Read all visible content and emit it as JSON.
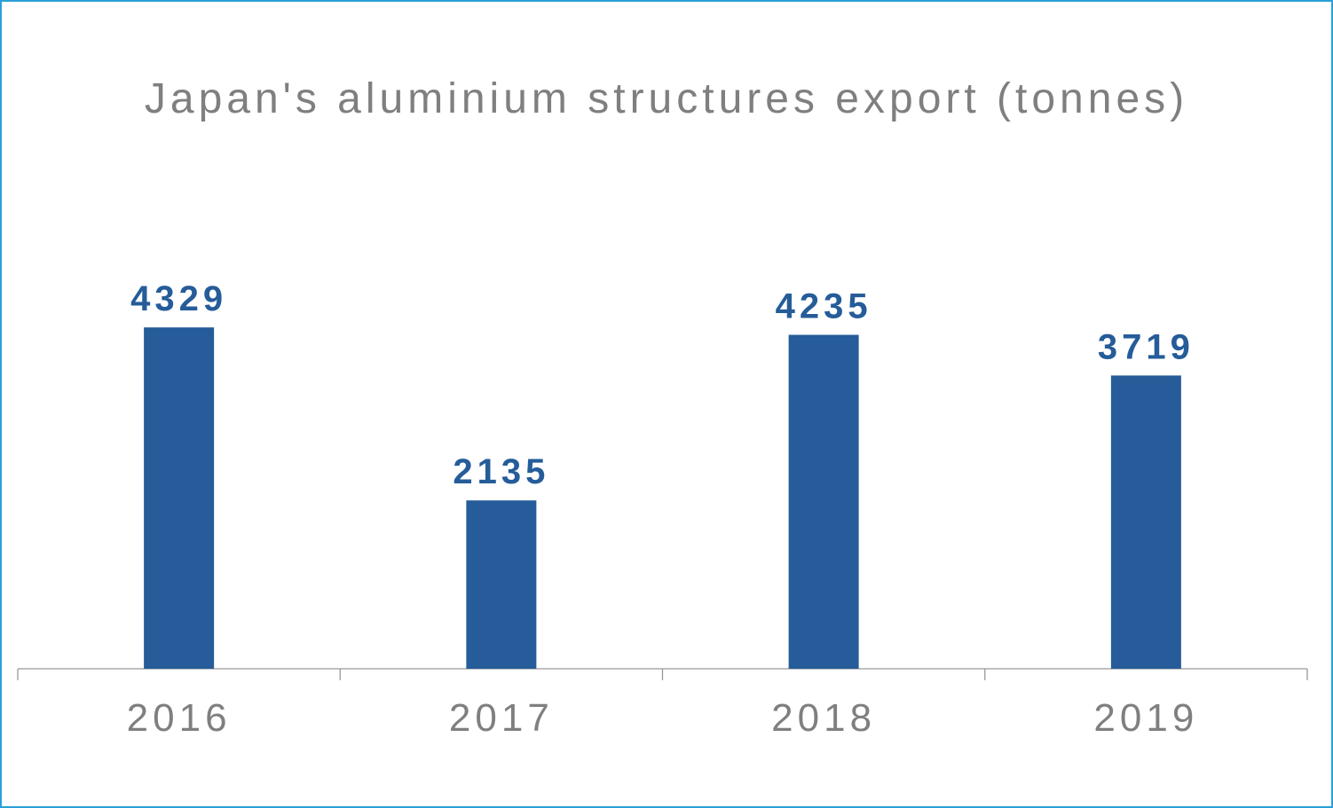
{
  "chart_data": {
    "type": "bar",
    "title": "Japan's aluminium structures export (tonnes)",
    "categories": [
      "2016",
      "2017",
      "2018",
      "2019"
    ],
    "values": [
      4329,
      2135,
      4235,
      3719
    ],
    "data_labels": [
      "4329",
      "2135",
      "4235",
      "3719"
    ],
    "xlabel": "",
    "ylabel": "",
    "ylim": [
      0,
      5000
    ],
    "grid": false,
    "legend": "none",
    "colors": {
      "bar": "#255c99",
      "label": "#255c99",
      "axis": "#999999",
      "text": "#7f7f7f",
      "border": "#2a9fd8"
    }
  }
}
